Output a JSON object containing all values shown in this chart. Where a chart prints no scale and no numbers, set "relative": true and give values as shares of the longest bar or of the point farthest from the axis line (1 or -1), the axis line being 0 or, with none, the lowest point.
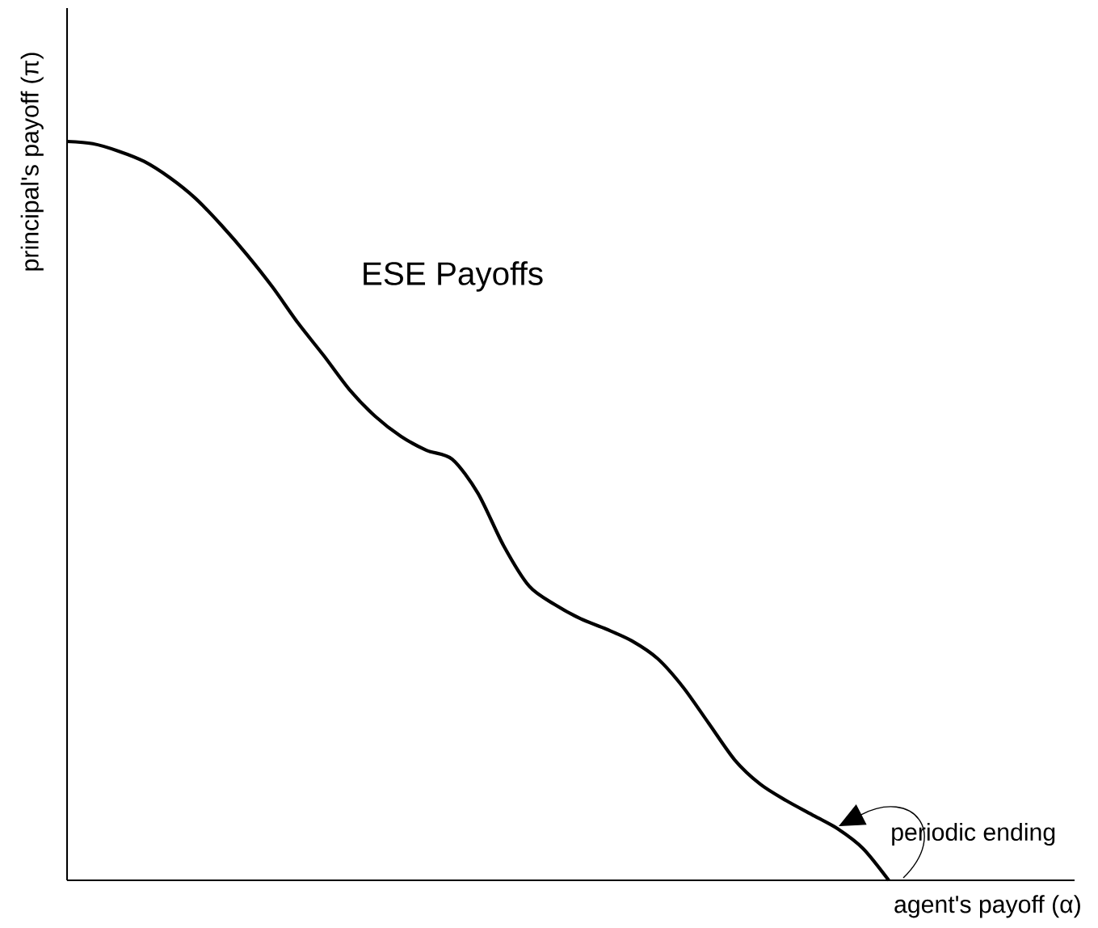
{
  "chart_data": {
    "type": "line",
    "relative": true,
    "xlabel": "agent's payoff (α)",
    "ylabel": "principal's payoff (π)",
    "annotations": [
      "ESE Payoffs",
      "periodic ending"
    ],
    "categories": [
      null,
      null,
      null,
      null,
      null,
      null,
      null,
      null,
      null,
      null,
      null,
      null,
      null,
      null,
      null,
      null,
      null,
      null,
      null,
      null,
      null,
      null,
      null,
      null,
      null,
      null,
      null,
      null,
      null,
      null,
      null,
      null,
      null
    ],
    "series": [
      {
        "color": "#000000",
        "values": [
          1.0,
          0.997,
          0.987,
          0.973,
          0.951,
          0.923,
          0.887,
          0.847,
          0.803,
          0.754,
          0.71,
          0.664,
          0.628,
          0.601,
          0.582,
          0.57,
          0.524,
          0.453,
          0.398,
          0.373,
          0.354,
          0.34,
          0.324,
          0.3,
          0.261,
          0.212,
          0.163,
          0.13,
          0.108,
          0.089,
          0.07,
          0.043,
          0.0
        ]
      }
    ]
  }
}
